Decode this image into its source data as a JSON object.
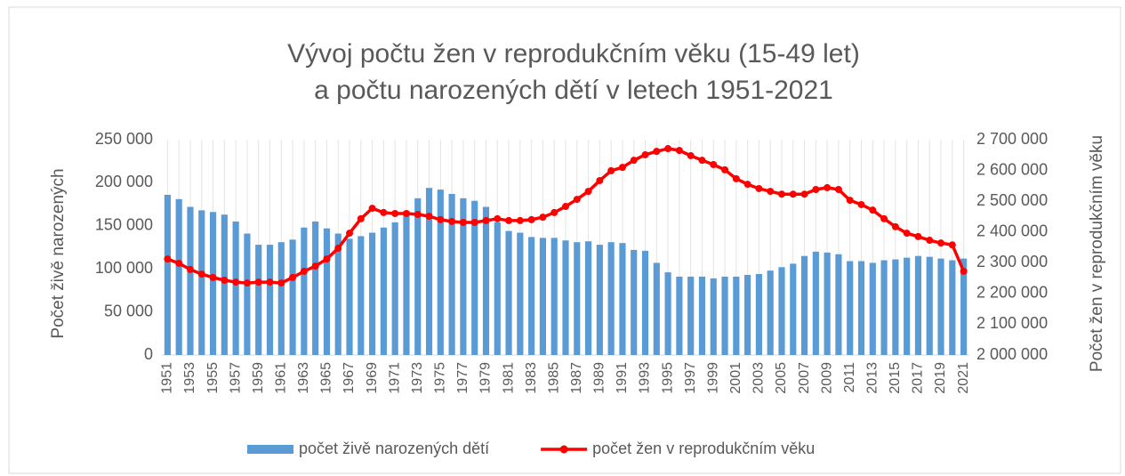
{
  "chart_data": {
    "type": "bar_line",
    "title": [
      "Vývoj počtu žen v reprodukčním věku (15-49 let)",
      "a počtu narozených dětí v letech  1951-2021"
    ],
    "ylabel": "Počet živě narozených",
    "y2label": "Počet žen v reprodukčním věku",
    "categories": [
      "1951",
      null,
      "1953",
      null,
      "1955",
      null,
      "1957",
      null,
      "1959",
      null,
      "1961",
      null,
      "1963",
      null,
      "1965",
      null,
      "1967",
      null,
      "1969",
      null,
      "1971",
      null,
      "1973",
      null,
      "1975",
      null,
      "1977",
      null,
      "1979",
      null,
      "1981",
      null,
      "1983",
      null,
      "1985",
      null,
      "1987",
      null,
      "1989",
      null,
      "1991",
      null,
      "1993",
      null,
      "1995",
      null,
      "1997",
      null,
      "1999",
      null,
      "2001",
      null,
      "2003",
      null,
      "2005",
      null,
      "2007",
      null,
      "2009",
      null,
      "2011",
      null,
      "2013",
      null,
      "2015",
      null,
      "2017",
      null,
      "2019",
      null,
      "2021"
    ],
    "series": [
      {
        "name": "počet živě narozených dětí",
        "kind": "bar",
        "color": "#5b9bd5",
        "axis": "y",
        "values": [
          186000,
          181000,
          172000,
          168000,
          166000,
          163000,
          155000,
          141000,
          128000,
          128000,
          131000,
          134000,
          148000,
          155000,
          147000,
          141000,
          135000,
          138000,
          142000,
          148000,
          154000,
          167000,
          182000,
          194000,
          192000,
          187000,
          182000,
          179000,
          172000,
          154000,
          144000,
          142000,
          137000,
          136000,
          136000,
          133000,
          131000,
          132000,
          128000,
          131000,
          130000,
          122000,
          121000,
          107000,
          96000,
          91000,
          91000,
          91000,
          89000,
          91000,
          91000,
          93000,
          94000,
          98000,
          102000,
          106000,
          115000,
          120000,
          119000,
          117000,
          109000,
          109000,
          107000,
          110000,
          111000,
          113000,
          115000,
          114000,
          112000,
          110000,
          112000
        ]
      },
      {
        "name": "počet žen v reprodukčním věku",
        "kind": "line",
        "color": "#ff0000",
        "axis": "y2",
        "values": [
          2312000,
          2298000,
          2278000,
          2263000,
          2252000,
          2243000,
          2237000,
          2234000,
          2237000,
          2237000,
          2234000,
          2252000,
          2272000,
          2289000,
          2312000,
          2347000,
          2396000,
          2443000,
          2477000,
          2463000,
          2460000,
          2460000,
          2457000,
          2451000,
          2440000,
          2434000,
          2431000,
          2431000,
          2437000,
          2443000,
          2437000,
          2437000,
          2440000,
          2448000,
          2463000,
          2483000,
          2506000,
          2532000,
          2567000,
          2599000,
          2610000,
          2633000,
          2651000,
          2662000,
          2671000,
          2665000,
          2648000,
          2633000,
          2619000,
          2602000,
          2573000,
          2555000,
          2541000,
          2532000,
          2523000,
          2523000,
          2523000,
          2538000,
          2544000,
          2538000,
          2503000,
          2489000,
          2471000,
          2443000,
          2417000,
          2396000,
          2385000,
          2373000,
          2364000,
          2358000,
          2272000
        ]
      }
    ],
    "ylim": [
      0,
      250000
    ],
    "yticks": [
      0,
      {
        "value": 50000,
        "label": "50 000"
      },
      {
        "value": 100000,
        "label": "100 000"
      },
      {
        "value": 150000,
        "label": "150 000"
      },
      {
        "value": 200000,
        "label": "200 000"
      },
      {
        "value": 250000,
        "label": "250 000"
      }
    ],
    "y2lim": [
      2000000,
      2700000
    ],
    "y2ticks": [
      {
        "value": 2000000,
        "label": "2 000 000"
      },
      {
        "value": 2100000,
        "label": "2 100 000"
      },
      {
        "value": 2200000,
        "label": "2 200 000"
      },
      {
        "value": 2300000,
        "label": "2 300 000"
      },
      {
        "value": 2400000,
        "label": "2 400 000"
      },
      {
        "value": 2500000,
        "label": "2 500 000"
      },
      {
        "value": 2600000,
        "label": "2 600 000"
      },
      {
        "value": 2700000,
        "label": "2 700 000"
      }
    ],
    "grid": true,
    "legend": "bottom"
  }
}
